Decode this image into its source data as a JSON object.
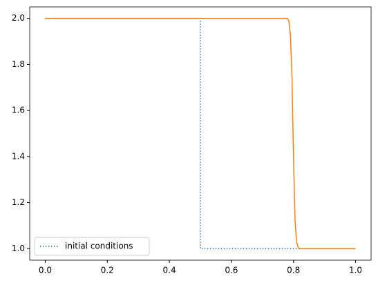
{
  "chart_data": {
    "type": "line",
    "series": [
      {
        "name": "initial conditions",
        "color": "#1f77b4",
        "style": "dotted",
        "x": [
          0,
          0.5,
          0.5,
          1
        ],
        "values": [
          2,
          2,
          1,
          1
        ]
      },
      {
        "color": "#ff7f0e",
        "style": "solid",
        "x": [
          0,
          0.78,
          0.785,
          0.79,
          0.795,
          0.8,
          0.805,
          0.81,
          0.815,
          0.82,
          1
        ],
        "values": [
          2,
          2,
          1.99,
          1.93,
          1.75,
          1.4,
          1.12,
          1.03,
          1.005,
          1,
          1
        ]
      }
    ],
    "xlim": [
      -0.05,
      1.05
    ],
    "xticks": [
      {
        "value": 0,
        "label": "0.0"
      },
      0.2,
      0.4,
      0.6,
      0.8,
      {
        "value": 1,
        "label": "1.0"
      }
    ],
    "ylim": [
      0.95,
      2.05
    ],
    "yticks": [
      {
        "value": 1,
        "label": "1.0"
      },
      1.2,
      1.4,
      1.6,
      1.8,
      {
        "value": 2,
        "label": "2.0"
      }
    ],
    "grid": false,
    "legend": "lower left"
  }
}
